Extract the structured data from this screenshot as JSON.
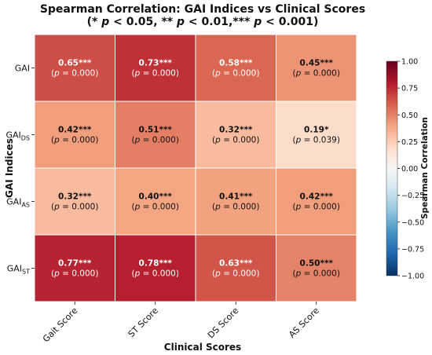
{
  "chart_data": {
    "type": "heatmap",
    "title_line1": "Spearman Correlation: GAI Indices vs Clinical Scores",
    "title_line2": "(* p < 0.05, ** p < 0.01,*** p < 0.001)",
    "xlabel": "Clinical Scores",
    "ylabel": "GAI Indices",
    "x_categories": [
      "Gait Score",
      "ST Score",
      "DS Score",
      "AS Score"
    ],
    "y_categories": [
      {
        "base": "GAI",
        "sub": ""
      },
      {
        "base": "GAI",
        "sub": "DS"
      },
      {
        "base": "GAI",
        "sub": "AS"
      },
      {
        "base": "GAI",
        "sub": "ST"
      }
    ],
    "values": [
      [
        0.65,
        0.73,
        0.58,
        0.45
      ],
      [
        0.42,
        0.51,
        0.32,
        0.19
      ],
      [
        0.32,
        0.4,
        0.41,
        0.42
      ],
      [
        0.77,
        0.78,
        0.63,
        0.5
      ]
    ],
    "value_labels": [
      [
        "0.65***",
        "0.73***",
        "0.58***",
        "0.45***"
      ],
      [
        "0.42***",
        "0.51***",
        "0.32***",
        "0.19*"
      ],
      [
        "0.32***",
        "0.40***",
        "0.41***",
        "0.42***"
      ],
      [
        "0.77***",
        "0.78***",
        "0.63***",
        "0.50***"
      ]
    ],
    "p_labels": [
      [
        "(p = 0.000)",
        "(p = 0.000)",
        "(p = 0.000)",
        "(p = 0.000)"
      ],
      [
        "(p = 0.000)",
        "(p = 0.000)",
        "(p = 0.000)",
        "(p = 0.039)"
      ],
      [
        "(p = 0.000)",
        "(p = 0.000)",
        "(p = 0.000)",
        "(p = 0.000)"
      ],
      [
        "(p = 0.000)",
        "(p = 0.000)",
        "(p = 0.000)",
        "(p = 0.000)"
      ]
    ],
    "colorbar": {
      "label": "Spearman Correlation",
      "range": [
        -1.0,
        1.0
      ],
      "ticks": [
        1.0,
        0.75,
        0.5,
        0.25,
        0.0,
        -0.25,
        -0.5,
        -0.75,
        -1.0
      ],
      "tick_labels": [
        "1.00",
        "0.75",
        "0.50",
        "0.25",
        "0.00",
        "−0.25",
        "−0.50",
        "−0.75",
        "−1.00"
      ],
      "colormap": "RdBu_r",
      "colors": [
        "#053061",
        "#2166ac",
        "#4393c3",
        "#92c5de",
        "#d1e5f0",
        "#f7f7f7",
        "#fddbc7",
        "#f4a582",
        "#d6604d",
        "#b2182b",
        "#67001f"
      ]
    },
    "grid": false,
    "legend": "colorbar-right"
  }
}
